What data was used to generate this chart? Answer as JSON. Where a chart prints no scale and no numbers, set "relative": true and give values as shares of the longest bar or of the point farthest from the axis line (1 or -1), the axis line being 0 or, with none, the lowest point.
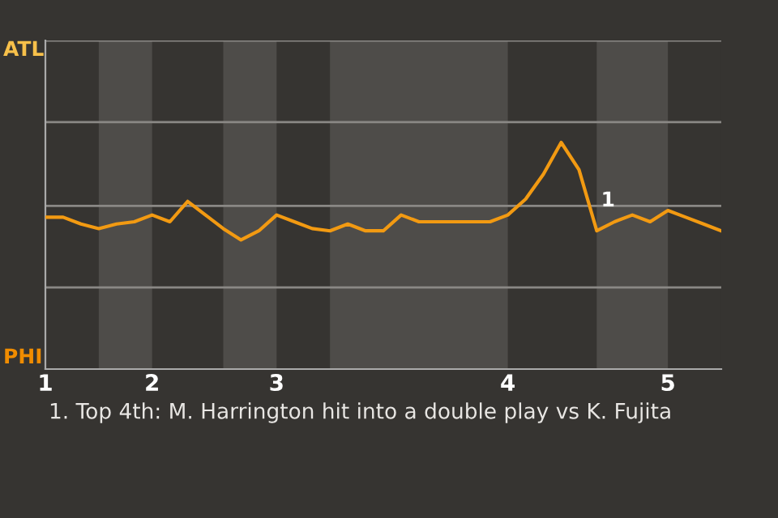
{
  "chart_data": {
    "type": "line",
    "relative": true,
    "categories": [
      "1",
      null,
      null,
      null,
      null,
      null,
      "2",
      null,
      null,
      null,
      null,
      null,
      null,
      "3",
      null,
      null,
      null,
      null,
      null,
      null,
      null,
      null,
      null,
      null,
      null,
      null,
      "4",
      null,
      null,
      null,
      null,
      null,
      null,
      null,
      null,
      "5",
      null,
      null,
      null
    ],
    "series": [
      {
        "color": "#f29a12",
        "values": [
          0.67,
          0.67,
          0.64,
          0.62,
          0.64,
          0.65,
          0.68,
          0.65,
          0.74,
          0.68,
          0.62,
          0.57,
          0.61,
          0.68,
          0.65,
          0.62,
          0.61,
          0.64,
          0.61,
          0.61,
          0.68,
          0.65,
          0.65,
          0.65,
          0.65,
          0.65,
          0.68,
          0.75,
          0.86,
          1,
          0.88,
          0.61,
          0.65,
          0.68,
          0.65,
          0.7,
          0.67,
          0.64,
          0.61
        ]
      }
    ],
    "ref_lines": [
      {
        "axis": "y",
        "value": 0.36,
        "color": "#8a8885"
      },
      {
        "axis": "y",
        "value": 0.72,
        "color": "#8a8885"
      },
      {
        "axis": "y",
        "value": 1.09,
        "color": "#8a8885"
      },
      {
        "axis": "y",
        "value": 1.45,
        "color": "#8a8885"
      }
    ],
    "annotations": [
      "ATL",
      "PHI",
      "1",
      "1. Top 4th: M. Harrington hit into a double play vs K. Fujita"
    ],
    "marker": "none",
    "line_style": "solid"
  }
}
